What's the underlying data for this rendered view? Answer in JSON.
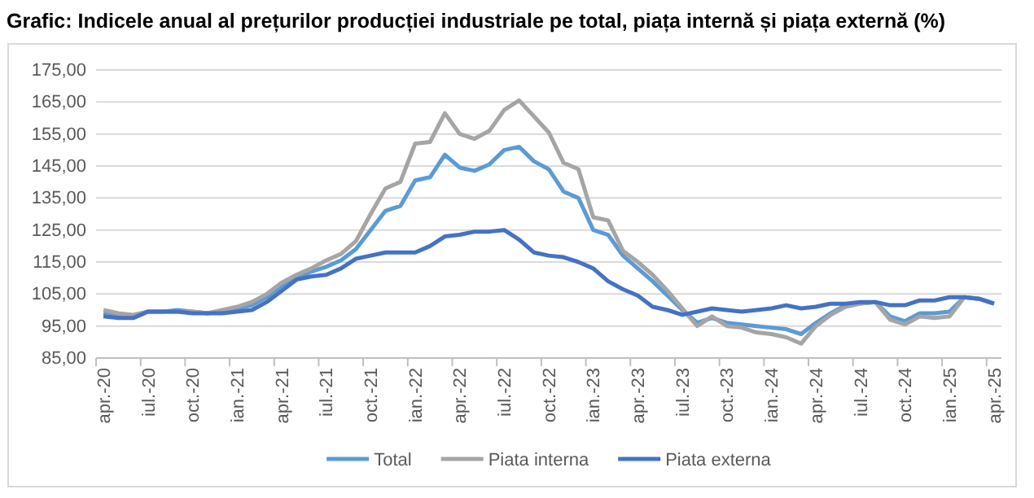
{
  "chart_data": {
    "type": "line",
    "title": "Grafic: Indicele anual al prețurilor producției industriale pe total, piața internă și piața externă (%)",
    "categories": [
      "apr.-20",
      null,
      null,
      "iul.-20",
      null,
      null,
      "oct.-20",
      null,
      null,
      "ian.-21",
      null,
      null,
      "apr.-21",
      null,
      null,
      "iul.-21",
      null,
      null,
      "oct.-21",
      null,
      null,
      "ian.-22",
      null,
      null,
      "apr.-22",
      null,
      null,
      "iul.-22",
      null,
      null,
      "oct.-22",
      null,
      null,
      "ian.-23",
      null,
      null,
      "apr.-23",
      null,
      null,
      "iul.-23",
      null,
      null,
      "oct.-23",
      null,
      null,
      "ian.-24",
      null,
      null,
      "apr.-24",
      null,
      null,
      "iul.-24",
      null,
      null,
      "oct.-24",
      null,
      null,
      "ian.-25",
      null,
      null,
      "apr.-25"
    ],
    "series": [
      {
        "name": "Total",
        "color": "#5b9bd5",
        "values": [
          99,
          98,
          98,
          99.5,
          99.5,
          100,
          99.5,
          99,
          99.5,
          100.5,
          101.5,
          104,
          107.5,
          110,
          112,
          113.5,
          115.5,
          119,
          125,
          131,
          132.5,
          140.5,
          141.5,
          148.5,
          144.5,
          143.5,
          145.5,
          150,
          151,
          146.5,
          144,
          137,
          135,
          125,
          123.5,
          117,
          113,
          109,
          104.5,
          100,
          96,
          97.5,
          96,
          95.5,
          95,
          94.5,
          94,
          92.5,
          96,
          99,
          101.5,
          102,
          102.5,
          98,
          96.5,
          99,
          99,
          99.5,
          104,
          103.5,
          102
        ]
      },
      {
        "name": "Piata interna",
        "color": "#a5a5a5",
        "values": [
          100,
          99,
          98.5,
          99.5,
          99.5,
          99.5,
          99.5,
          99,
          100,
          101,
          102.5,
          105,
          108.5,
          111,
          113,
          115.5,
          117.5,
          121.5,
          130,
          138,
          140,
          152,
          152.5,
          161.5,
          155,
          153.5,
          156,
          162.5,
          165.5,
          160.5,
          155.5,
          146,
          144,
          129,
          128,
          118.5,
          115,
          111,
          106,
          100.5,
          95,
          98,
          95,
          94.5,
          93,
          92.5,
          91.5,
          89.5,
          95,
          98.5,
          101,
          102,
          102.5,
          97,
          95.5,
          98,
          97.5,
          98,
          104,
          103.5,
          102
        ]
      },
      {
        "name": "Piata externa",
        "color": "#4472c4",
        "values": [
          98,
          97.5,
          97.5,
          99.5,
          99.5,
          99.5,
          99,
          99,
          99,
          99.5,
          100,
          102.5,
          106,
          109.5,
          110.5,
          111,
          113,
          116,
          117,
          118,
          118,
          118,
          120,
          123,
          123.5,
          124.5,
          124.5,
          125,
          122,
          118,
          117,
          116.5,
          115,
          113,
          109,
          106.5,
          104.5,
          101,
          100,
          98.5,
          99.5,
          100.5,
          100,
          99.5,
          100,
          100.5,
          101.5,
          100.5,
          101,
          102,
          102,
          102.5,
          102.5,
          101.5,
          101.5,
          103,
          103,
          104,
          104,
          103.5,
          102
        ]
      }
    ],
    "ylim": [
      85,
      175
    ],
    "yticks": [
      {
        "value": 85,
        "label": "85,00"
      },
      {
        "value": 95,
        "label": "95,00"
      },
      {
        "value": 105,
        "label": "105,00"
      },
      {
        "value": 115,
        "label": "115,00"
      },
      {
        "value": 125,
        "label": "125,00"
      },
      {
        "value": 135,
        "label": "135,00"
      },
      {
        "value": 145,
        "label": "145,00"
      },
      {
        "value": 155,
        "label": "155,00"
      },
      {
        "value": 165,
        "label": "165,00"
      },
      {
        "value": 175,
        "label": "175,00"
      }
    ],
    "grid": "y",
    "legend": "bottom",
    "marker": "none",
    "line_style": "solid"
  }
}
